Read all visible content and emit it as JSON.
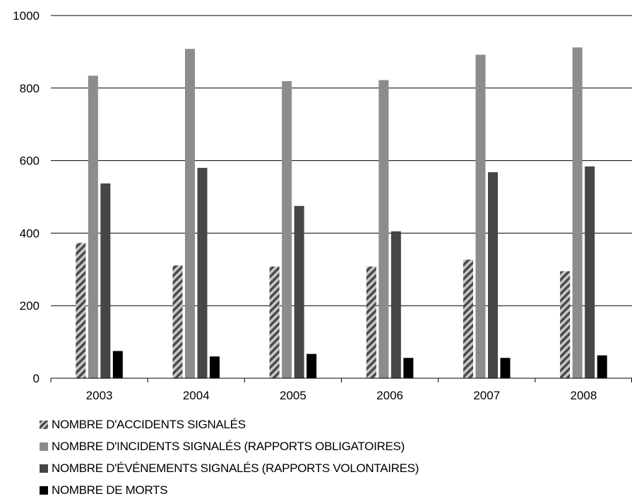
{
  "chart_data": {
    "type": "bar",
    "title": "",
    "xlabel": "",
    "ylabel": "",
    "categories": [
      "2003",
      "2004",
      "2005",
      "2006",
      "2007",
      "2008"
    ],
    "ylim": [
      0,
      1000
    ],
    "yticks": [
      "0",
      "200",
      "400",
      "600",
      "800",
      "1000"
    ],
    "grid": true,
    "legend_position": "bottom",
    "series": [
      {
        "name": "NOMBRE D'ACCIDENTS SIGNALÉS",
        "values": [
          373,
          311,
          308,
          308,
          327,
          295
        ],
        "color": "#7f7f7f",
        "pattern": "hatch"
      },
      {
        "name": "NOMBRE D'INCIDENTS SIGNALÉS (RAPPORTS OBLIGATOIRES)",
        "values": [
          834,
          908,
          819,
          822,
          892,
          912
        ],
        "color": "#8c8c8c",
        "pattern": "solid"
      },
      {
        "name": "NOMBRE D'ÉVÉNEMENTS SIGNALÉS (RAPPORTS VOLONTAIRES)",
        "values": [
          537,
          580,
          475,
          405,
          568,
          584
        ],
        "color": "#464646",
        "pattern": "solid"
      },
      {
        "name": "NOMBRE DE MORTS",
        "values": [
          75,
          60,
          67,
          56,
          56,
          63
        ],
        "color": "#000000",
        "pattern": "solid"
      }
    ]
  }
}
